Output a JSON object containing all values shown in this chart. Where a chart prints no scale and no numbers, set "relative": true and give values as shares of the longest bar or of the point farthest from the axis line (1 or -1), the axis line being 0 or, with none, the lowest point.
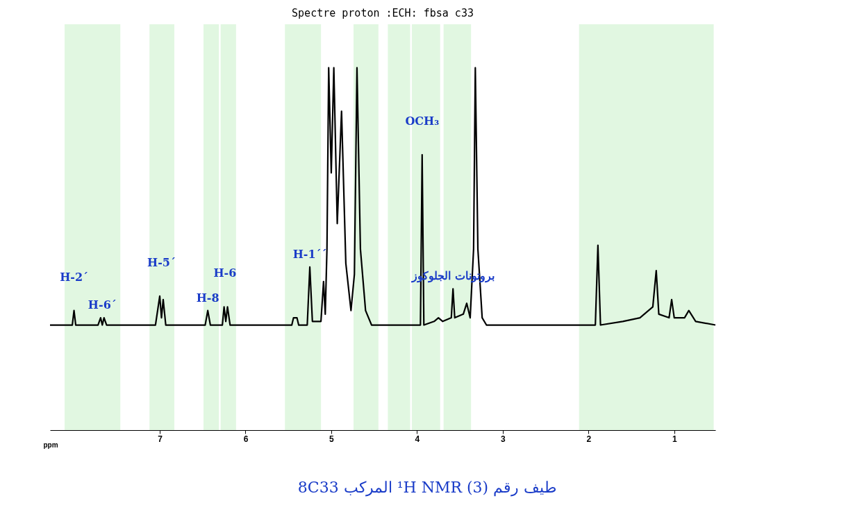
{
  "chart_data": {
    "type": "line",
    "title": "Spectre proton :ECH: fbsa c33",
    "xlabel": "ppm",
    "relative": true,
    "grid": false,
    "xlim": [
      8.28,
      0.52
    ],
    "xticks": [
      7,
      6,
      5,
      4,
      3,
      2,
      1
    ],
    "x": [
      8.28,
      8.05,
      8.02,
      8.0,
      7.98,
      7.95,
      7.72,
      7.69,
      7.67,
      7.65,
      7.62,
      7.05,
      7.0,
      6.98,
      6.96,
      6.93,
      6.47,
      6.44,
      6.41,
      6.27,
      6.25,
      6.23,
      6.21,
      6.18,
      5.46,
      5.44,
      5.4,
      5.38,
      5.28,
      5.25,
      5.22,
      5.12,
      5.09,
      5.07,
      5.05,
      5.03,
      5.0,
      4.97,
      4.93,
      4.88,
      4.83,
      4.77,
      4.73,
      4.7,
      4.66,
      4.6,
      4.53,
      4.3,
      3.96,
      3.94,
      3.92,
      3.8,
      3.75,
      3.7,
      3.6,
      3.58,
      3.56,
      3.46,
      3.42,
      3.38,
      3.34,
      3.32,
      3.29,
      3.24,
      3.19,
      2.5,
      1.92,
      1.89,
      1.86,
      1.6,
      1.4,
      1.25,
      1.21,
      1.18,
      1.06,
      1.03,
      1.0,
      0.88,
      0.83,
      0.75,
      0.52
    ],
    "series": [
      {
        "color": "#000000",
        "values": [
          0.29,
          0.29,
          0.29,
          0.33,
          0.29,
          0.29,
          0.29,
          0.31,
          0.29,
          0.31,
          0.29,
          0.29,
          0.37,
          0.31,
          0.36,
          0.29,
          0.29,
          0.33,
          0.29,
          0.29,
          0.34,
          0.3,
          0.34,
          0.29,
          0.29,
          0.31,
          0.31,
          0.29,
          0.29,
          0.45,
          0.3,
          0.3,
          0.41,
          0.32,
          0.5,
          1,
          0.71,
          1,
          0.57,
          0.88,
          0.46,
          0.33,
          0.43,
          1,
          0.5,
          0.33,
          0.29,
          0.29,
          0.29,
          0.76,
          0.29,
          0.3,
          0.31,
          0.3,
          0.31,
          0.39,
          0.31,
          0.32,
          0.35,
          0.31,
          0.5,
          1,
          0.5,
          0.31,
          0.29,
          0.29,
          0.29,
          0.51,
          0.29,
          0.3,
          0.31,
          0.34,
          0.44,
          0.32,
          0.31,
          0.36,
          0.31,
          0.31,
          0.33,
          0.3,
          0.29
        ]
      }
    ],
    "bands": [
      {
        "axis": "x",
        "from": 8.11,
        "to": 7.81,
        "color": "#33cc33"
      },
      {
        "axis": "x",
        "from": 7.81,
        "to": 7.46,
        "color": "#33cc33"
      },
      {
        "axis": "x",
        "from": 7.12,
        "to": 6.83,
        "color": "#33cc33"
      },
      {
        "axis": "x",
        "from": 6.49,
        "to": 6.31,
        "color": "#33cc33"
      },
      {
        "axis": "x",
        "from": 6.29,
        "to": 6.11,
        "color": "#33cc33"
      },
      {
        "axis": "x",
        "from": 5.54,
        "to": 5.3,
        "color": "#33cc33"
      },
      {
        "axis": "x",
        "from": 5.3,
        "to": 5.12,
        "color": "#33cc33"
      },
      {
        "axis": "x",
        "from": 4.74,
        "to": 4.45,
        "color": "#33cc33"
      },
      {
        "axis": "x",
        "from": 4.34,
        "to": 4.08,
        "color": "#33cc33"
      },
      {
        "axis": "x",
        "from": 4.06,
        "to": 3.73,
        "color": "#33cc33"
      },
      {
        "axis": "x",
        "from": 3.69,
        "to": 3.37,
        "color": "#33cc33"
      },
      {
        "axis": "x",
        "from": 2.11,
        "to": 0.54,
        "color": "#33cc33"
      }
    ],
    "annotations": [
      {
        "text": "H-2´",
        "x": 8.0,
        "y": 0.33
      },
      {
        "text": "H-6´",
        "x": 7.67,
        "y": 0.31
      },
      {
        "text": "H-5´",
        "x": 6.98,
        "y": 0.37
      },
      {
        "text": "H-8",
        "x": 6.44,
        "y": 0.33
      },
      {
        "text": "H-6",
        "x": 6.24,
        "y": 0.34
      },
      {
        "text": "H-1´´",
        "x": 5.25,
        "y": 0.45
      },
      {
        "text": "OCH₃",
        "x": 3.94,
        "y": 0.76
      },
      {
        "text": "بروتونات الجلوكوز",
        "x": 3.58,
        "y": 0.39
      },
      "طيف رقم (3) ¹H NMR المركب 8C33"
    ]
  }
}
